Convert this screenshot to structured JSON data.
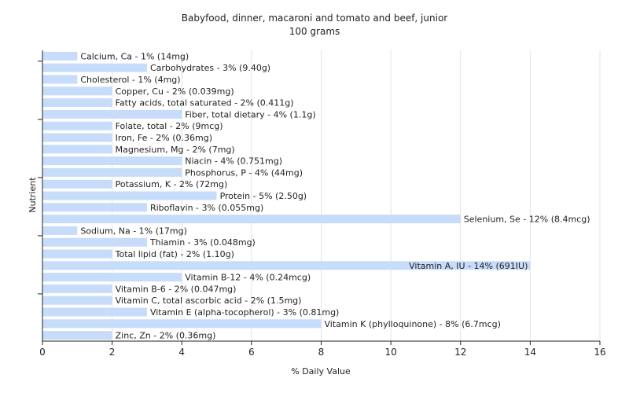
{
  "chart_data": {
    "type": "bar",
    "orientation": "horizontal",
    "title": "Babyfood, dinner, macaroni and tomato and beef, junior",
    "subtitle": "100 grams",
    "xlabel": "% Daily Value",
    "ylabel": "Nutrient",
    "xlim": [
      0,
      16
    ],
    "xticks": [
      0,
      2,
      4,
      6,
      8,
      10,
      12,
      14,
      16
    ],
    "grid": true,
    "bar_color": "#c6dcfa",
    "categories": [
      "Calcium, Ca",
      "Carbohydrates",
      "Cholesterol",
      "Copper, Cu",
      "Fatty acids, total saturated",
      "Fiber, total dietary",
      "Folate, total",
      "Iron, Fe",
      "Magnesium, Mg",
      "Niacin",
      "Phosphorus, P",
      "Potassium, K",
      "Protein",
      "Riboflavin",
      "Selenium, Se",
      "Sodium, Na",
      "Thiamin",
      "Total lipid (fat)",
      "Vitamin A, IU",
      "Vitamin B-12",
      "Vitamin B-6",
      "Vitamin C, total ascorbic acid",
      "Vitamin E (alpha-tocopherol)",
      "Vitamin K (phylloquinone)",
      "Zinc, Zn"
    ],
    "values": [
      1,
      3,
      1,
      2,
      2,
      4,
      2,
      2,
      2,
      4,
      4,
      2,
      5,
      3,
      12,
      1,
      3,
      2,
      14,
      4,
      2,
      2,
      3,
      8,
      2
    ],
    "labels": [
      "Calcium, Ca - 1% (14mg)",
      "Carbohydrates - 3% (9.40g)",
      "Cholesterol - 1% (4mg)",
      "Copper, Cu - 2% (0.039mg)",
      "Fatty acids, total saturated - 2% (0.411g)",
      "Fiber, total dietary - 4% (1.1g)",
      "Folate, total - 2% (9mcg)",
      "Iron, Fe - 2% (0.36mg)",
      "Magnesium, Mg - 2% (7mg)",
      "Niacin - 4% (0.751mg)",
      "Phosphorus, P - 4% (44mg)",
      "Potassium, K - 2% (72mg)",
      "Protein - 5% (2.50g)",
      "Riboflavin - 3% (0.055mg)",
      "Selenium, Se - 12% (8.4mcg)",
      "Sodium, Na - 1% (17mg)",
      "Thiamin - 3% (0.048mg)",
      "Total lipid (fat) - 2% (1.10g)",
      "Vitamin A, IU - 14% (691IU)",
      "Vitamin B-12 - 4% (0.24mcg)",
      "Vitamin B-6 - 2% (0.047mg)",
      "Vitamin C, total ascorbic acid - 2% (1.5mg)",
      "Vitamin E (alpha-tocopherol) - 3% (0.81mg)",
      "Vitamin K (phylloquinone) - 8% (6.7mcg)",
      "Zinc, Zn - 2% (0.36mg)"
    ]
  }
}
